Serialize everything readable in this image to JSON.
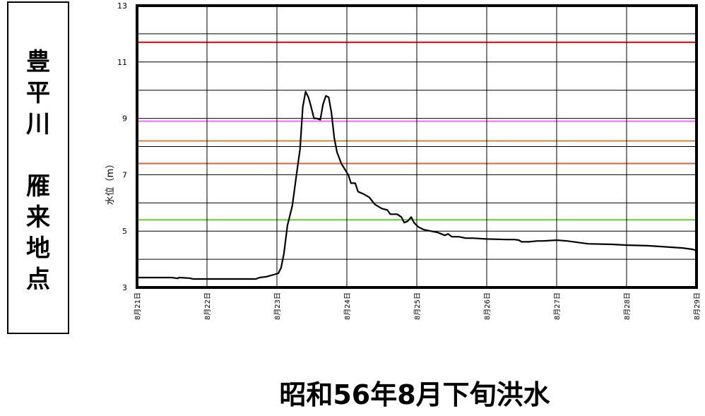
{
  "station": {
    "label": "豊\n平\n川\n\n雁\n来\n地\n点"
  },
  "title": "昭和56年8月下旬洪水",
  "chart_data": {
    "type": "line",
    "title": "昭和56年8月下旬洪水",
    "xlabel": "",
    "ylabel": "水位（m）",
    "ylim": [
      3,
      13
    ],
    "yticks": [
      3,
      5,
      7,
      9,
      11,
      13
    ],
    "ytick_labels": [
      "3",
      "5",
      "7",
      "9",
      "11",
      "13"
    ],
    "xlim": [
      0,
      8
    ],
    "x_unit": "days after 8月21日 0:00",
    "xtick_labels": [
      "8月21日",
      "8月22日",
      "8月23日",
      "8月24日",
      "8月25日",
      "8月26日",
      "8月27日",
      "8月28日",
      "8月29日"
    ],
    "grid": true,
    "legend": "none",
    "reference_lines": [
      {
        "value": 11.7,
        "color": "#ff0000"
      },
      {
        "value": 8.9,
        "color": "#ff66ff"
      },
      {
        "value": 8.2,
        "color": "#cc8844"
      },
      {
        "value": 7.4,
        "color": "#cc6644"
      },
      {
        "value": 5.4,
        "color": "#66cc33"
      }
    ],
    "series": [
      {
        "color": "#000000",
        "points": [
          [
            0.0,
            3.35
          ],
          [
            0.5,
            3.35
          ],
          [
            0.58,
            3.32
          ],
          [
            0.6,
            3.35
          ],
          [
            0.75,
            3.33
          ],
          [
            0.8,
            3.3
          ],
          [
            1.0,
            3.3
          ],
          [
            1.5,
            3.3
          ],
          [
            1.7,
            3.3
          ],
          [
            1.75,
            3.35
          ],
          [
            1.85,
            3.38
          ],
          [
            1.95,
            3.45
          ],
          [
            2.02,
            3.5
          ],
          [
            2.06,
            3.7
          ],
          [
            2.1,
            4.2
          ],
          [
            2.15,
            5.2
          ],
          [
            2.22,
            5.9
          ],
          [
            2.28,
            7.0
          ],
          [
            2.33,
            7.9
          ],
          [
            2.37,
            9.4
          ],
          [
            2.41,
            9.95
          ],
          [
            2.45,
            9.75
          ],
          [
            2.49,
            9.4
          ],
          [
            2.53,
            9.0
          ],
          [
            2.57,
            9.0
          ],
          [
            2.62,
            8.95
          ],
          [
            2.66,
            9.5
          ],
          [
            2.7,
            9.8
          ],
          [
            2.74,
            9.75
          ],
          [
            2.78,
            9.2
          ],
          [
            2.82,
            8.3
          ],
          [
            2.86,
            7.8
          ],
          [
            2.92,
            7.4
          ],
          [
            2.97,
            7.2
          ],
          [
            3.02,
            7.0
          ],
          [
            3.06,
            6.7
          ],
          [
            3.12,
            6.7
          ],
          [
            3.16,
            6.4
          ],
          [
            3.25,
            6.3
          ],
          [
            3.32,
            6.2
          ],
          [
            3.4,
            5.95
          ],
          [
            3.5,
            5.8
          ],
          [
            3.58,
            5.75
          ],
          [
            3.62,
            5.6
          ],
          [
            3.72,
            5.6
          ],
          [
            3.78,
            5.5
          ],
          [
            3.82,
            5.3
          ],
          [
            3.87,
            5.35
          ],
          [
            3.92,
            5.5
          ],
          [
            3.96,
            5.3
          ],
          [
            4.02,
            5.15
          ],
          [
            4.1,
            5.05
          ],
          [
            4.2,
            5.0
          ],
          [
            4.3,
            4.95
          ],
          [
            4.4,
            4.85
          ],
          [
            4.45,
            4.9
          ],
          [
            4.5,
            4.8
          ],
          [
            4.6,
            4.8
          ],
          [
            4.7,
            4.75
          ],
          [
            4.8,
            4.75
          ],
          [
            5.0,
            4.72
          ],
          [
            5.3,
            4.7
          ],
          [
            5.4,
            4.7
          ],
          [
            5.46,
            4.68
          ],
          [
            5.5,
            4.62
          ],
          [
            5.6,
            4.62
          ],
          [
            5.72,
            4.65
          ],
          [
            5.8,
            4.65
          ],
          [
            6.0,
            4.68
          ],
          [
            6.15,
            4.65
          ],
          [
            6.3,
            4.6
          ],
          [
            6.45,
            4.55
          ],
          [
            6.8,
            4.53
          ],
          [
            7.0,
            4.5
          ],
          [
            7.3,
            4.48
          ],
          [
            7.5,
            4.45
          ],
          [
            7.8,
            4.4
          ],
          [
            7.95,
            4.35
          ],
          [
            8.0,
            4.3
          ]
        ]
      }
    ]
  }
}
